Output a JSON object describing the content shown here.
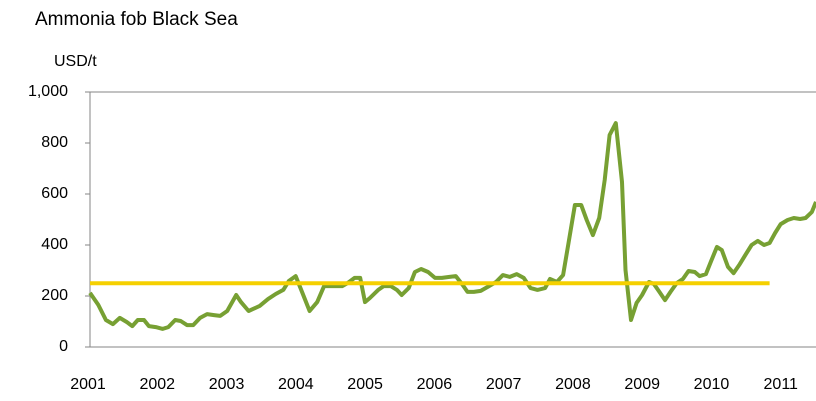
{
  "chart_data": {
    "type": "line",
    "title": "Ammonia fob Black Sea",
    "y_label": "USD/t",
    "xlim": [
      2001,
      2011.48
    ],
    "xticks": [
      2001,
      2002,
      2003,
      2004,
      2005,
      2006,
      2007,
      2008,
      2009,
      2010,
      2011
    ],
    "ylim": [
      0,
      1000
    ],
    "yticks": [
      0,
      200,
      400,
      600,
      800,
      {
        "value": 1000,
        "label": "1,000"
      }
    ],
    "series": [
      {
        "color": "#77a033",
        "x": [
          2001.0,
          2001.12,
          2001.23,
          2001.33,
          2001.43,
          2001.53,
          2001.61,
          2001.69,
          2001.78,
          2001.85,
          2001.95,
          2002.05,
          2002.13,
          2002.23,
          2002.31,
          2002.4,
          2002.49,
          2002.59,
          2002.69,
          2002.79,
          2002.88,
          2002.98,
          2003.11,
          2003.18,
          2003.29,
          2003.45,
          2003.57,
          2003.68,
          2003.79,
          2003.87,
          2003.97,
          2004.06,
          2004.17,
          2004.28,
          2004.38,
          2004.49,
          2004.64,
          2004.72,
          2004.82,
          2004.9,
          2004.97,
          2005.04,
          2005.16,
          2005.24,
          2005.34,
          2005.43,
          2005.5,
          2005.6,
          2005.69,
          2005.78,
          2005.88,
          2005.98,
          2006.08,
          2006.19,
          2006.28,
          2006.38,
          2006.45,
          2006.54,
          2006.64,
          2006.76,
          2006.86,
          2006.96,
          2007.06,
          2007.16,
          2007.26,
          2007.36,
          2007.46,
          2007.57,
          2007.64,
          2007.74,
          2007.83,
          2007.91,
          2008.0,
          2008.09,
          2008.17,
          2008.26,
          2008.35,
          2008.43,
          2008.5,
          2008.59,
          2008.68,
          2008.73,
          2008.81,
          2008.89,
          2008.97,
          2009.07,
          2009.14,
          2009.21,
          2009.3,
          2009.38,
          2009.47,
          2009.56,
          2009.64,
          2009.73,
          2009.8,
          2009.89,
          2009.96,
          2010.05,
          2010.12,
          2010.21,
          2010.29,
          2010.38,
          2010.47,
          2010.55,
          2010.64,
          2010.73,
          2010.81,
          2010.89,
          2010.97,
          2011.07,
          2011.16,
          2011.25,
          2011.33,
          2011.42,
          2011.48
        ],
        "values": [
          212,
          165,
          106,
          90,
          114,
          98,
          82,
          106,
          106,
          82,
          78,
          71,
          78,
          106,
          102,
          86,
          86,
          114,
          129,
          125,
          122,
          141,
          204,
          176,
          141,
          161,
          188,
          208,
          224,
          259,
          278,
          216,
          141,
          176,
          239,
          239,
          239,
          251,
          271,
          271,
          176,
          192,
          224,
          239,
          239,
          224,
          204,
          231,
          294,
          306,
          294,
          271,
          271,
          275,
          278,
          243,
          216,
          216,
          220,
          239,
          255,
          282,
          275,
          286,
          271,
          231,
          224,
          231,
          267,
          255,
          282,
          412,
          557,
          557,
          498,
          439,
          506,
          655,
          831,
          878,
          647,
          302,
          106,
          173,
          204,
          255,
          247,
          220,
          184,
          216,
          251,
          267,
          298,
          294,
          278,
          286,
          333,
          392,
          380,
          314,
          290,
          325,
          365,
          400,
          416,
          400,
          408,
          447,
          482,
          498,
          506,
          502,
          506,
          529,
          569
        ]
      },
      {
        "color": "#f5d000",
        "x": [
          2001,
          2010.81
        ],
        "values": [
          250,
          250
        ]
      }
    ]
  }
}
